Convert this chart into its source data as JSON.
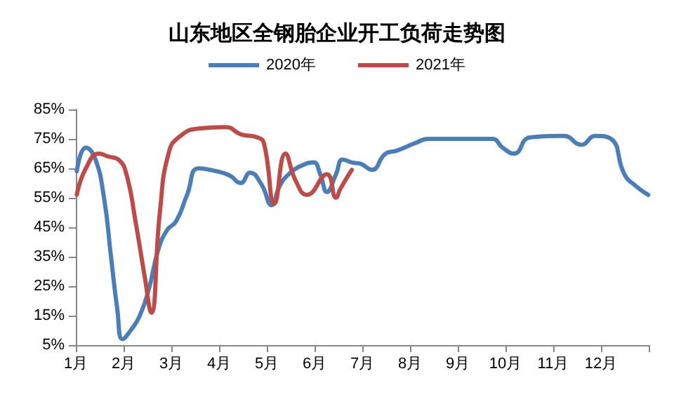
{
  "chart_data": {
    "type": "line",
    "title": "山东地区全钢胎企业开工负荷走势图",
    "xlim": [
      1,
      13
    ],
    "xticks": [
      {
        "value": 1,
        "label": "1月"
      },
      {
        "value": 2,
        "label": "2月"
      },
      {
        "value": 3,
        "label": "3月"
      },
      {
        "value": 4,
        "label": "4月"
      },
      {
        "value": 5,
        "label": "5月"
      },
      {
        "value": 6,
        "label": "6月"
      },
      {
        "value": 7,
        "label": "7月"
      },
      {
        "value": 8,
        "label": "8月"
      },
      {
        "value": 9,
        "label": "9月"
      },
      {
        "value": 10,
        "label": "10月"
      },
      {
        "value": 11,
        "label": "11月"
      },
      {
        "value": 12,
        "label": "12月"
      },
      {
        "value": 13,
        "label": null
      }
    ],
    "ylim": [
      5,
      85
    ],
    "yticks": [
      {
        "value": 5,
        "label": "5%"
      },
      {
        "value": 15,
        "label": "15%"
      },
      {
        "value": 25,
        "label": "25%"
      },
      {
        "value": 35,
        "label": "35%"
      },
      {
        "value": 45,
        "label": "45%"
      },
      {
        "value": 55,
        "label": "55%"
      },
      {
        "value": 65,
        "label": "65%"
      },
      {
        "value": 75,
        "label": "75%"
      },
      {
        "value": 85,
        "label": "85%"
      }
    ],
    "grid": false,
    "legend": "top",
    "marker": "none",
    "line_style": "solid",
    "series": [
      {
        "name": "2020年",
        "color": "#4a7ebb",
        "x": [
          1.02,
          1.21,
          1.4,
          1.59,
          1.73,
          1.87,
          1.98,
          2.15,
          2.34,
          2.53,
          2.72,
          2.91,
          3.1,
          3.33,
          3.57,
          3.95,
          4.23,
          4.45,
          4.65,
          4.89,
          5.1,
          5.27,
          5.46,
          5.74,
          5.98,
          6.12,
          6.26,
          6.45,
          6.59,
          6.78,
          6.97,
          7.2,
          7.49,
          7.72,
          8.1,
          8.39,
          9.05,
          9.52,
          9.73,
          9.94,
          10.18,
          10.51,
          11.22,
          11.59,
          11.88,
          12.21,
          12.49,
          12.73,
          12.99
        ],
        "values": [
          64,
          72,
          68.5,
          55,
          36,
          17,
          7,
          10,
          15,
          24,
          37,
          44,
          47,
          56,
          65,
          64,
          62.5,
          60,
          63.5,
          59.5,
          52.5,
          59,
          63,
          66,
          67,
          63,
          57,
          63,
          68,
          67,
          66.5,
          64.5,
          70,
          71,
          73.5,
          75,
          75,
          75,
          75,
          72,
          70,
          75.5,
          76,
          73,
          76,
          75,
          63,
          59,
          56
        ]
      },
      {
        "name": "2021年",
        "color": "#be4b48",
        "x": [
          1.02,
          1.21,
          1.49,
          1.68,
          1.89,
          2.06,
          2.25,
          2.44,
          2.58,
          2.76,
          2.95,
          3.19,
          3.57,
          4.14,
          4.46,
          4.8,
          4.94,
          5.16,
          5.39,
          5.6,
          5.84,
          6.26,
          6.45,
          6.54,
          6.78
        ],
        "values": [
          56,
          65,
          70,
          69,
          68,
          63,
          47,
          28.5,
          16,
          50,
          70.5,
          76,
          78.5,
          79,
          76.5,
          75.5,
          73.5,
          53,
          70,
          61,
          56,
          63,
          55,
          58,
          64.5
        ]
      }
    ]
  }
}
